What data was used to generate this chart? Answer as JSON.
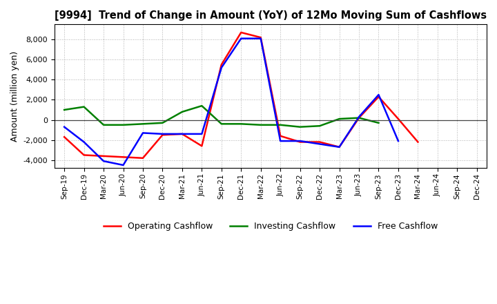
{
  "title": "[9994]  Trend of Change in Amount (YoY) of 12Mo Moving Sum of Cashflows",
  "ylabel": "Amount (million yen)",
  "x_labels": [
    "Sep-19",
    "Dec-19",
    "Mar-20",
    "Jun-20",
    "Sep-20",
    "Dec-20",
    "Mar-21",
    "Jun-21",
    "Sep-21",
    "Dec-21",
    "Mar-22",
    "Jun-22",
    "Sep-22",
    "Dec-22",
    "Mar-23",
    "Jun-23",
    "Sep-23",
    "Dec-23",
    "Mar-24",
    "Jun-24",
    "Sep-24",
    "Dec-24"
  ],
  "operating_cashflow": [
    -1700,
    -3500,
    -3600,
    -3700,
    -3800,
    -1500,
    -1400,
    -2600,
    5500,
    8700,
    8200,
    -1600,
    -2200,
    -2200,
    -2700,
    200,
    2300,
    100,
    -2200,
    null,
    null,
    null
  ],
  "investing_cashflow": [
    1000,
    1300,
    -500,
    -500,
    -400,
    -300,
    800,
    1400,
    -400,
    -400,
    -500,
    -500,
    -700,
    -600,
    100,
    200,
    -300,
    null,
    null,
    null,
    null,
    null
  ],
  "free_cashflow": [
    -700,
    -2200,
    -4100,
    -4500,
    -1300,
    -1400,
    -1400,
    -1400,
    5200,
    8100,
    8100,
    -2100,
    -2100,
    -2400,
    -2700,
    300,
    2500,
    -2100,
    null,
    null,
    null,
    null
  ],
  "operating_color": "#ff0000",
  "investing_color": "#008000",
  "free_color": "#0000ff",
  "ylim": [
    -4800,
    9500
  ],
  "yticks": [
    -4000,
    -2000,
    0,
    2000,
    4000,
    6000,
    8000
  ],
  "bg_color": "#ffffff",
  "grid_color": "#b0b0b0",
  "linewidth": 1.8
}
